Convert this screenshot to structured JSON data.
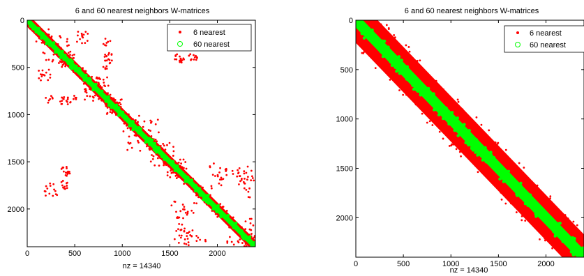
{
  "chart_data": [
    {
      "type": "scatter",
      "title": "6 and 60 nearest neighbors W-matrices",
      "xlabel": "nz = 14340",
      "ylabel": "",
      "xlim": [
        0,
        2400
      ],
      "ylim": [
        2400,
        0
      ],
      "y_reversed": true,
      "xticks": [
        0,
        500,
        1000,
        1500,
        2000
      ],
      "yticks": [
        0,
        500,
        1000,
        1500,
        2000
      ],
      "legend_position": "top-right",
      "grid": false,
      "series": [
        {
          "name": "6 nearest",
          "color": "#ff0000",
          "marker": "dot",
          "band_halfwidth": 70,
          "scattered_blocks": [
            {
              "x": [
                150,
                330
              ],
              "y": [
                50,
                450
              ]
            },
            {
              "x": [
                350,
                500
              ],
              "y": [
                300,
                550
              ]
            },
            {
              "x": [
                520,
                640
              ],
              "y": [
                120,
                250
              ]
            },
            {
              "x": [
                800,
                880
              ],
              "y": [
                180,
                520
              ]
            },
            {
              "x": [
                350,
                500
              ],
              "y": [
                800,
                900
              ]
            },
            {
              "x": [
                180,
                320
              ],
              "y": [
                1720,
                1870
              ]
            },
            {
              "x": [
                360,
                430
              ],
              "y": [
                1600,
                1800
              ]
            },
            {
              "x": [
                820,
                920
              ],
              "y": [
                820,
                1000
              ]
            },
            {
              "x": [
                1050,
                1200
              ],
              "y": [
                1000,
                1400
              ]
            },
            {
              "x": [
                1300,
                1450
              ],
              "y": [
                1280,
                1600
              ]
            },
            {
              "x": [
                1500,
                1650
              ],
              "y": [
                1450,
                1700
              ]
            },
            {
              "x": [
                1580,
                1700
              ],
              "y": [
                1950,
                2350
              ]
            },
            {
              "x": [
                1900,
                2100
              ],
              "y": [
                1500,
                1800
              ]
            },
            {
              "x": [
                2200,
                2380
              ],
              "y": [
                1550,
                1900
              ]
            },
            {
              "x": [
                2200,
                2400
              ],
              "y": [
                2100,
                2400
              ]
            },
            {
              "x": [
                1550,
                1650
              ],
              "y": [
                350,
                450
              ]
            },
            {
              "x": [
                1650,
                1800
              ],
              "y": [
                2200,
                2400
              ]
            },
            {
              "x": [
                600,
                700
              ],
              "y": [
                700,
                860
              ]
            }
          ]
        },
        {
          "name": "60 nearest",
          "color": "#00ff00",
          "marker": "circle",
          "band_halfwidth": 38
        }
      ]
    },
    {
      "type": "scatter",
      "title": "6 and 60 nearest neighbors W-matrices",
      "xlabel": "nz = 14340",
      "ylabel": "",
      "xlim": [
        0,
        2400
      ],
      "ylim": [
        2400,
        0
      ],
      "y_reversed": true,
      "xticks": [
        0,
        500,
        1000,
        1500,
        2000
      ],
      "yticks": [
        0,
        500,
        1000,
        1500,
        2000
      ],
      "legend_position": "top-right",
      "grid": false,
      "series": [
        {
          "name": "6 nearest",
          "color": "#ff0000",
          "marker": "dot",
          "band_halfwidth": 230
        },
        {
          "name": "60 nearest",
          "color": "#00ff00",
          "marker": "circle",
          "band_halfwidth": 75
        }
      ]
    }
  ]
}
